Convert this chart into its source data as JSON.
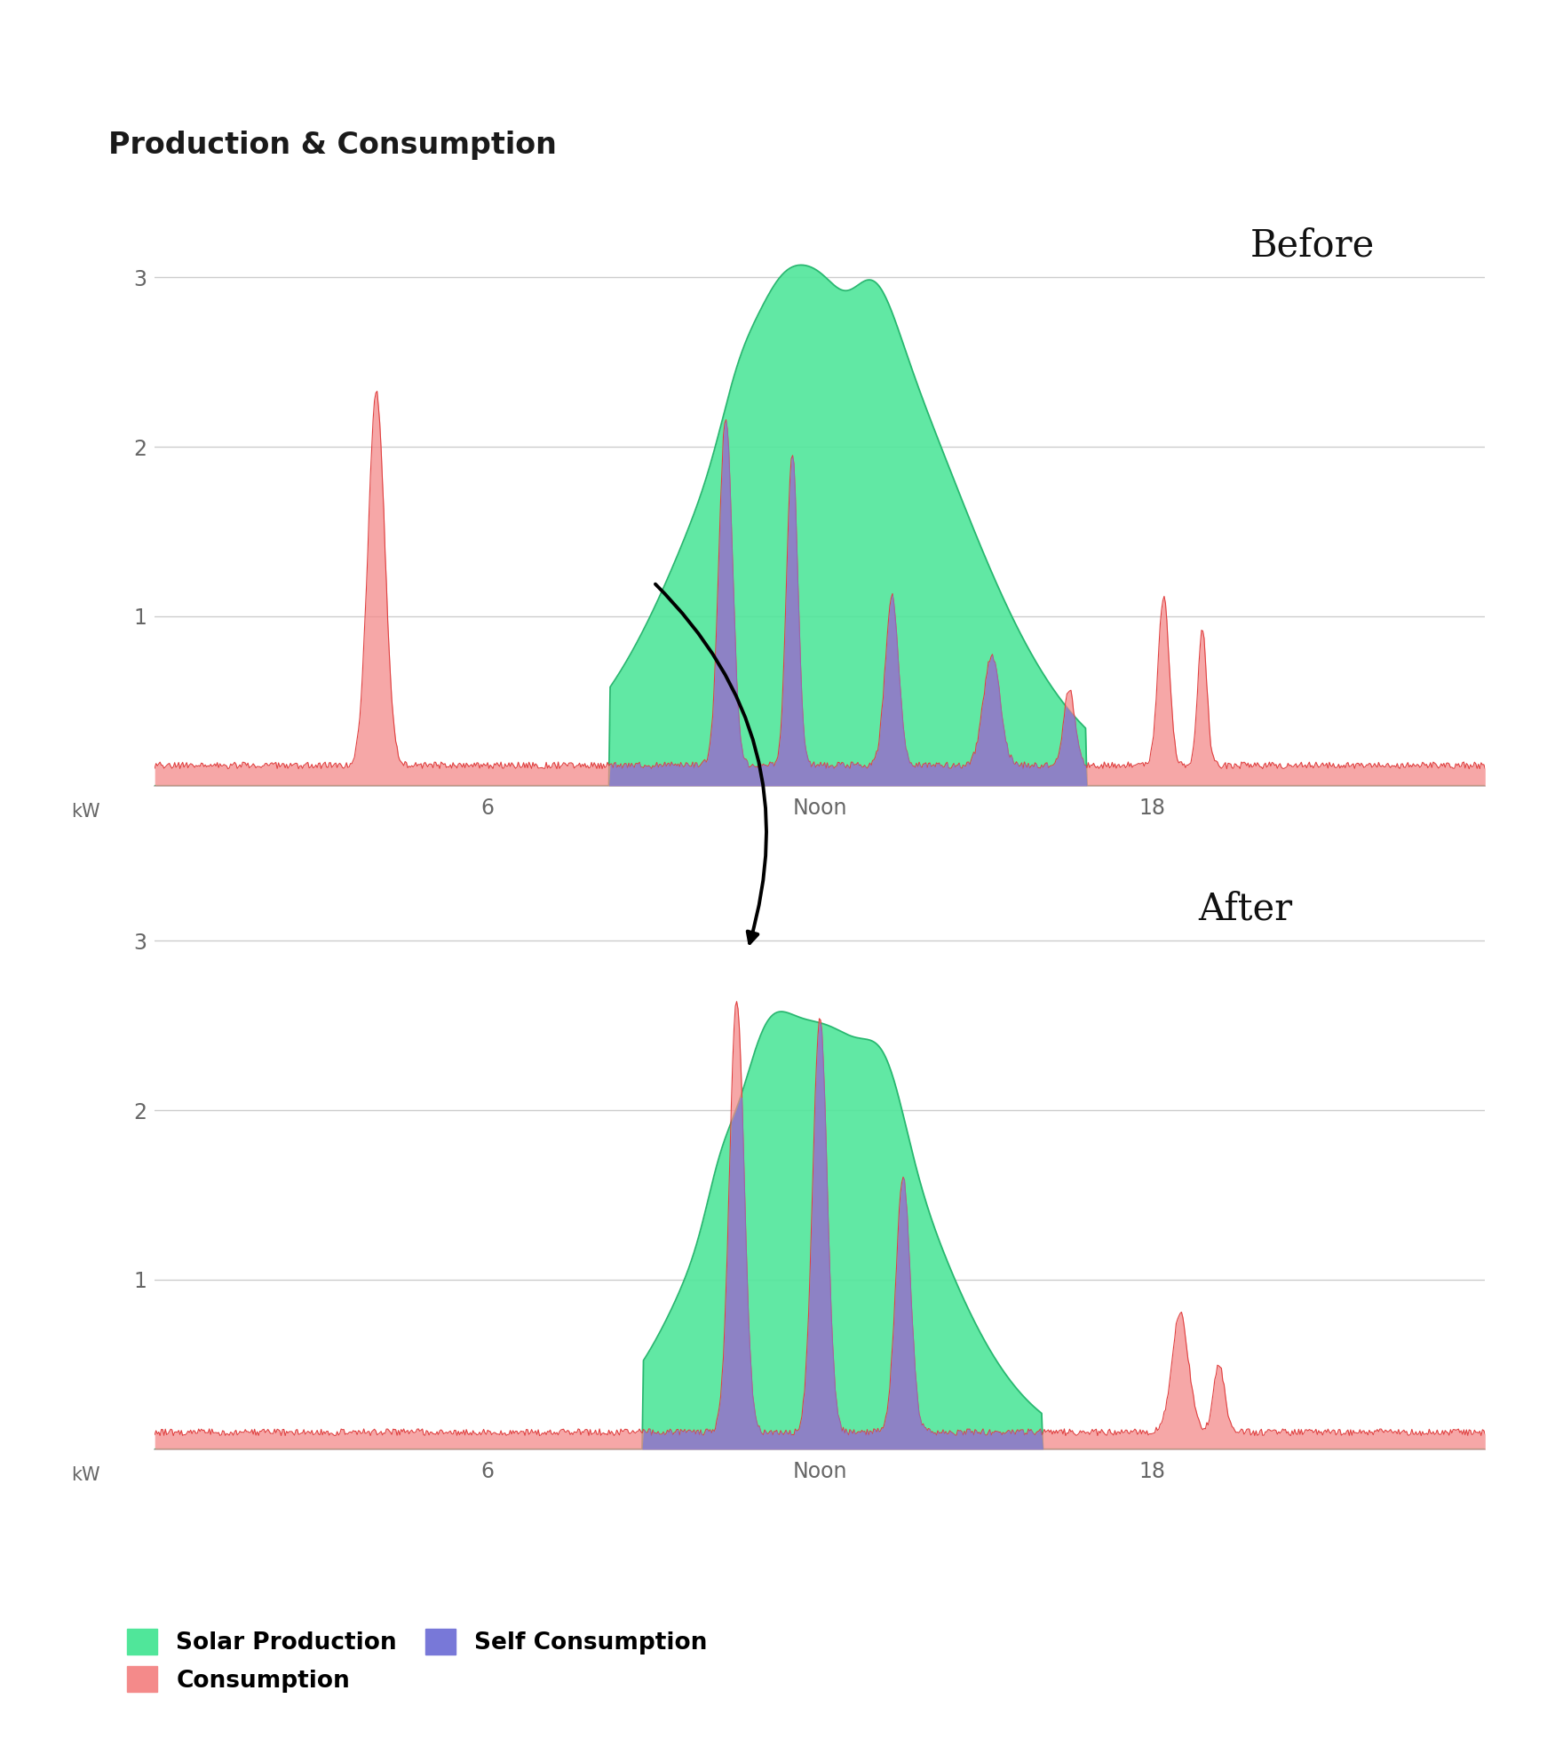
{
  "title": "Production & Consumption",
  "title_fontsize": 24,
  "title_fontweight": "bold",
  "background_color": "#ffffff",
  "grid_color": "#cccccc",
  "ylim": [
    0,
    3.4
  ],
  "yticks": [
    1,
    2,
    3
  ],
  "ylabel": "kW",
  "xtick_positions": [
    6,
    12,
    18
  ],
  "xtick_labels": [
    "6",
    "Noon",
    "18"
  ],
  "solar_color": "#50e69a",
  "solar_alpha": 0.9,
  "consumption_color": "#f48a8a",
  "consumption_alpha": 0.75,
  "self_consumption_color": "#7878d8",
  "self_consumption_alpha": 0.75,
  "before_label": "Before",
  "after_label": "After",
  "legend_solar": "Solar Production",
  "legend_consumption": "Consumption",
  "legend_self": "Self Consumption",
  "legend_fontsize": 19,
  "axis_label_color": "#666666",
  "tick_fontsize": 17
}
